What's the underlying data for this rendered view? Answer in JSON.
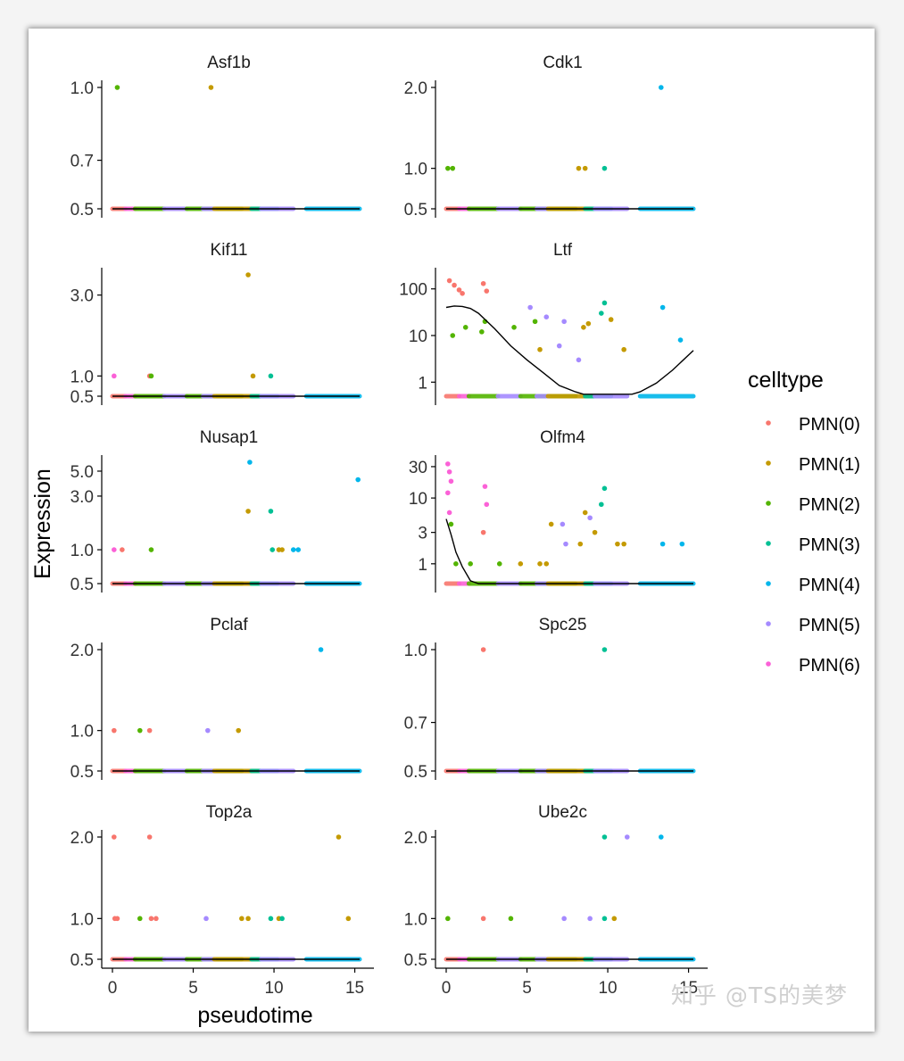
{
  "watermark": "知乎 @TS的美梦",
  "chart_data": {
    "type": "scatter",
    "xlabel": "pseudotime",
    "ylabel": "Expression",
    "xlim": [
      0,
      15.3
    ],
    "xticks": [
      0,
      5,
      10,
      15
    ],
    "legend": {
      "title": "celltype",
      "placement": "right",
      "entries": [
        {
          "label": "PMN(0)",
          "color": "#F8766D"
        },
        {
          "label": "PMN(1)",
          "color": "#C49A00"
        },
        {
          "label": "PMN(2)",
          "color": "#53B400"
        },
        {
          "label": "PMN(3)",
          "color": "#00C094"
        },
        {
          "label": "PMN(4)",
          "color": "#00B6EB"
        },
        {
          "label": "PMN(5)",
          "color": "#A58AFF"
        },
        {
          "label": "PMN(6)",
          "color": "#FB61D7"
        }
      ]
    },
    "panels": [
      {
        "gene": "Asf1b",
        "scale": "linear",
        "ylim": [
          0.5,
          1.0
        ],
        "ticks": [
          0.5,
          0.7,
          1.0
        ],
        "tick_labels": [
          "0.5",
          "0.7",
          "1.0"
        ],
        "points": [
          [
            0.3,
            1.0,
            2
          ],
          [
            6.1,
            1.0,
            1
          ]
        ],
        "trend": [
          [
            0,
            0.5
          ],
          [
            15.3,
            0.5
          ]
        ]
      },
      {
        "gene": "Cdk1",
        "scale": "linear",
        "ylim": [
          0.5,
          2.0
        ],
        "ticks": [
          0.5,
          1.0,
          2.0
        ],
        "tick_labels": [
          "0.5",
          "1.0",
          "2.0"
        ],
        "points": [
          [
            0.1,
            1.0,
            2
          ],
          [
            0.4,
            1.0,
            2
          ],
          [
            8.2,
            1.0,
            1
          ],
          [
            8.6,
            1.0,
            1
          ],
          [
            9.8,
            1.0,
            3
          ],
          [
            13.3,
            2.0,
            4
          ]
        ],
        "trend": [
          [
            0,
            0.5
          ],
          [
            15.3,
            0.5
          ]
        ]
      },
      {
        "gene": "Kif11",
        "scale": "linear",
        "ylim": [
          0.5,
          3.5
        ],
        "ticks": [
          0.5,
          1.0,
          3.0
        ],
        "tick_labels": [
          "0.5",
          "1.0",
          "3.0"
        ],
        "points": [
          [
            0.1,
            1.0,
            6
          ],
          [
            2.3,
            1.0,
            0
          ],
          [
            2.4,
            1.0,
            2
          ],
          [
            8.4,
            3.5,
            1
          ],
          [
            8.7,
            1.0,
            1
          ],
          [
            9.8,
            1.0,
            3
          ]
        ],
        "trend": [
          [
            0,
            0.5
          ],
          [
            15.3,
            0.5
          ]
        ]
      },
      {
        "gene": "Ltf",
        "scale": "log",
        "ylim": [
          0.5,
          200
        ],
        "ticks": [
          1,
          10,
          100
        ],
        "tick_labels": [
          "1",
          "10",
          "100"
        ],
        "points": [
          [
            0.2,
            150,
            0
          ],
          [
            0.5,
            120,
            0
          ],
          [
            0.8,
            95,
            0
          ],
          [
            1.0,
            80,
            0
          ],
          [
            2.3,
            130,
            0
          ],
          [
            2.5,
            90,
            0
          ],
          [
            0.4,
            10,
            2
          ],
          [
            1.2,
            15,
            2
          ],
          [
            2.2,
            12,
            2
          ],
          [
            2.4,
            20,
            2
          ],
          [
            4.2,
            15,
            2
          ],
          [
            5.5,
            20,
            2
          ],
          [
            5.2,
            40,
            5
          ],
          [
            6.2,
            25,
            5
          ],
          [
            7.3,
            20,
            5
          ],
          [
            8.5,
            15,
            1
          ],
          [
            8.8,
            18,
            1
          ],
          [
            9.6,
            30,
            3
          ],
          [
            9.8,
            50,
            3
          ],
          [
            10.2,
            22,
            1
          ],
          [
            11.0,
            5,
            1
          ],
          [
            13.4,
            40,
            4
          ],
          [
            14.5,
            8,
            4
          ],
          [
            5.8,
            5,
            1
          ],
          [
            7.0,
            6,
            5
          ],
          [
            8.2,
            3,
            5
          ]
        ],
        "trend": [
          [
            0.0,
            40
          ],
          [
            0.5,
            43
          ],
          [
            1.0,
            42
          ],
          [
            1.5,
            38
          ],
          [
            2.0,
            30
          ],
          [
            3.0,
            14
          ],
          [
            4.0,
            6
          ],
          [
            5.0,
            3.0
          ],
          [
            6.0,
            1.6
          ],
          [
            7.0,
            0.85
          ],
          [
            8.0,
            0.62
          ],
          [
            8.5,
            0.55
          ],
          [
            11.5,
            0.55
          ],
          [
            12.0,
            0.62
          ],
          [
            13.0,
            0.95
          ],
          [
            14.0,
            1.8
          ],
          [
            15.3,
            4.8
          ]
        ]
      },
      {
        "gene": "Nusap1",
        "scale": "log",
        "ylim": [
          0.5,
          6.0
        ],
        "ticks": [
          0.5,
          1.0,
          3.0,
          5.0
        ],
        "tick_labels": [
          "0.5",
          "1.0",
          "3.0",
          "5.0"
        ],
        "points": [
          [
            0.1,
            1.0,
            6
          ],
          [
            0.6,
            1.0,
            0
          ],
          [
            2.4,
            1.0,
            2
          ],
          [
            8.4,
            2.2,
            1
          ],
          [
            8.5,
            6.0,
            4
          ],
          [
            9.8,
            2.2,
            3
          ],
          [
            9.9,
            1.0,
            3
          ],
          [
            10.3,
            1.0,
            1
          ],
          [
            10.5,
            1.0,
            1
          ],
          [
            11.2,
            1.0,
            4
          ],
          [
            11.5,
            1.0,
            4
          ],
          [
            15.2,
            4.2,
            4
          ]
        ],
        "trend": [
          [
            0,
            0.5
          ],
          [
            15.3,
            0.5
          ]
        ]
      },
      {
        "gene": "Olfm4",
        "scale": "log",
        "ylim": [
          0.5,
          35
        ],
        "ticks": [
          1,
          3,
          10,
          30
        ],
        "tick_labels": [
          "1",
          "3",
          "10",
          "30"
        ],
        "points": [
          [
            0.1,
            33,
            6
          ],
          [
            0.2,
            25,
            6
          ],
          [
            0.3,
            18,
            6
          ],
          [
            0.1,
            12,
            6
          ],
          [
            0.2,
            6,
            6
          ],
          [
            0.3,
            4,
            2
          ],
          [
            0.6,
            1,
            2
          ],
          [
            1.5,
            1,
            2
          ],
          [
            2.4,
            15,
            6
          ],
          [
            2.5,
            8,
            6
          ],
          [
            2.3,
            3,
            0
          ],
          [
            3.3,
            1,
            2
          ],
          [
            4.6,
            1,
            1
          ],
          [
            5.8,
            1,
            1
          ],
          [
            6.2,
            1,
            1
          ],
          [
            6.5,
            4,
            1
          ],
          [
            7.2,
            4,
            5
          ],
          [
            7.4,
            2,
            5
          ],
          [
            8.3,
            2,
            1
          ],
          [
            8.6,
            6,
            1
          ],
          [
            8.9,
            5,
            5
          ],
          [
            9.2,
            3,
            1
          ],
          [
            9.6,
            8,
            3
          ],
          [
            9.8,
            14,
            3
          ],
          [
            10.6,
            2,
            1
          ],
          [
            11.0,
            2,
            1
          ],
          [
            13.4,
            2,
            4
          ],
          [
            14.6,
            2,
            4
          ]
        ],
        "trend": [
          [
            0.0,
            4.8
          ],
          [
            0.3,
            2.8
          ],
          [
            0.6,
            1.5
          ],
          [
            1.0,
            0.9
          ],
          [
            1.5,
            0.55
          ],
          [
            2.0,
            0.5
          ],
          [
            15.3,
            0.5
          ]
        ]
      },
      {
        "gene": "Pclaf",
        "scale": "linear",
        "ylim": [
          0.5,
          2.0
        ],
        "ticks": [
          0.5,
          1.0,
          2.0
        ],
        "tick_labels": [
          "0.5",
          "1.0",
          "2.0"
        ],
        "points": [
          [
            0.1,
            1.0,
            0
          ],
          [
            1.7,
            1.0,
            2
          ],
          [
            2.3,
            1.0,
            0
          ],
          [
            5.9,
            1.0,
            5
          ],
          [
            7.8,
            1.0,
            1
          ],
          [
            12.9,
            2.0,
            4
          ]
        ],
        "trend": [
          [
            0,
            0.5
          ],
          [
            15.3,
            0.5
          ]
        ]
      },
      {
        "gene": "Spc25",
        "scale": "linear",
        "ylim": [
          0.5,
          1.0
        ],
        "ticks": [
          0.5,
          0.7,
          1.0
        ],
        "tick_labels": [
          "0.5",
          "0.7",
          "1.0"
        ],
        "points": [
          [
            2.3,
            1.0,
            0
          ],
          [
            9.8,
            1.0,
            3
          ]
        ],
        "trend": [
          [
            0,
            0.5
          ],
          [
            15.3,
            0.5
          ]
        ]
      },
      {
        "gene": "Top2a",
        "scale": "linear",
        "ylim": [
          0.5,
          2.0
        ],
        "ticks": [
          0.5,
          1.0,
          2.0
        ],
        "tick_labels": [
          "0.5",
          "1.0",
          "2.0"
        ],
        "points": [
          [
            0.1,
            2.0,
            0
          ],
          [
            0.15,
            1.0,
            0
          ],
          [
            0.3,
            1.0,
            0
          ],
          [
            1.7,
            1.0,
            2
          ],
          [
            2.3,
            2.0,
            0
          ],
          [
            2.4,
            1.0,
            0
          ],
          [
            2.7,
            1.0,
            0
          ],
          [
            5.8,
            1.0,
            5
          ],
          [
            8.0,
            1.0,
            1
          ],
          [
            8.4,
            1.0,
            1
          ],
          [
            9.8,
            1.0,
            3
          ],
          [
            10.3,
            1.0,
            1
          ],
          [
            10.5,
            1.0,
            3
          ],
          [
            14.0,
            2.0,
            1
          ],
          [
            14.6,
            1.0,
            1
          ]
        ],
        "trend": [
          [
            0,
            0.5
          ],
          [
            15.3,
            0.5
          ]
        ]
      },
      {
        "gene": "Ube2c",
        "scale": "linear",
        "ylim": [
          0.5,
          2.0
        ],
        "ticks": [
          0.5,
          1.0,
          2.0
        ],
        "tick_labels": [
          "0.5",
          "1.0",
          "2.0"
        ],
        "points": [
          [
            0.1,
            1.0,
            2
          ],
          [
            2.3,
            1.0,
            0
          ],
          [
            4.0,
            1.0,
            2
          ],
          [
            7.3,
            1.0,
            5
          ],
          [
            8.9,
            1.0,
            5
          ],
          [
            9.8,
            1.0,
            3
          ],
          [
            9.8,
            2.0,
            3
          ],
          [
            10.4,
            1.0,
            1
          ],
          [
            11.2,
            2.0,
            5
          ],
          [
            13.3,
            2.0,
            4
          ]
        ],
        "trend": [
          [
            0,
            0.5
          ],
          [
            15.3,
            0.5
          ]
        ]
      }
    ]
  }
}
